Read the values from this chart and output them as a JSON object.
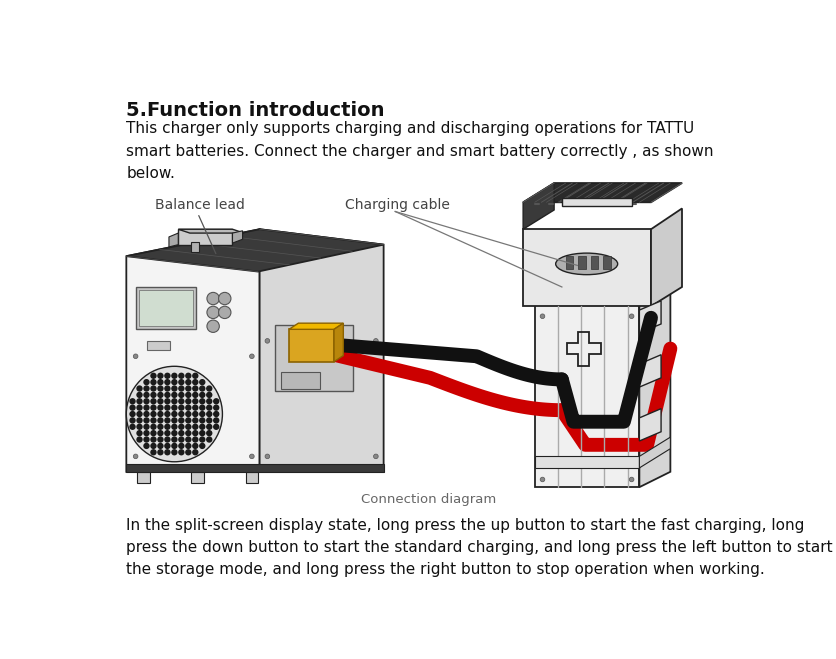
{
  "title": "5.Function introduction",
  "intro_text": "This charger only supports charging and discharging operations for TATTU\nsmart batteries. Connect the charger and smart battery correctly , as shown\nbelow.",
  "footer_text": "In the split-screen display state, long press the up button to start the fast charging, long\npress the down button to start the standard charging, and long press the left button to start\nthe storage mode, and long press the right button to stop operation when working.",
  "label_balance": "Balance lead",
  "label_charging": "Charging cable",
  "label_connection": "Connection diagram",
  "bg_color": "#ffffff",
  "text_color": "#1a1a1a",
  "title_fontsize": 14,
  "body_fontsize": 11,
  "small_fontsize": 10,
  "caption_fontsize": 9.5,
  "fig_width": 8.37,
  "fig_height": 6.59
}
